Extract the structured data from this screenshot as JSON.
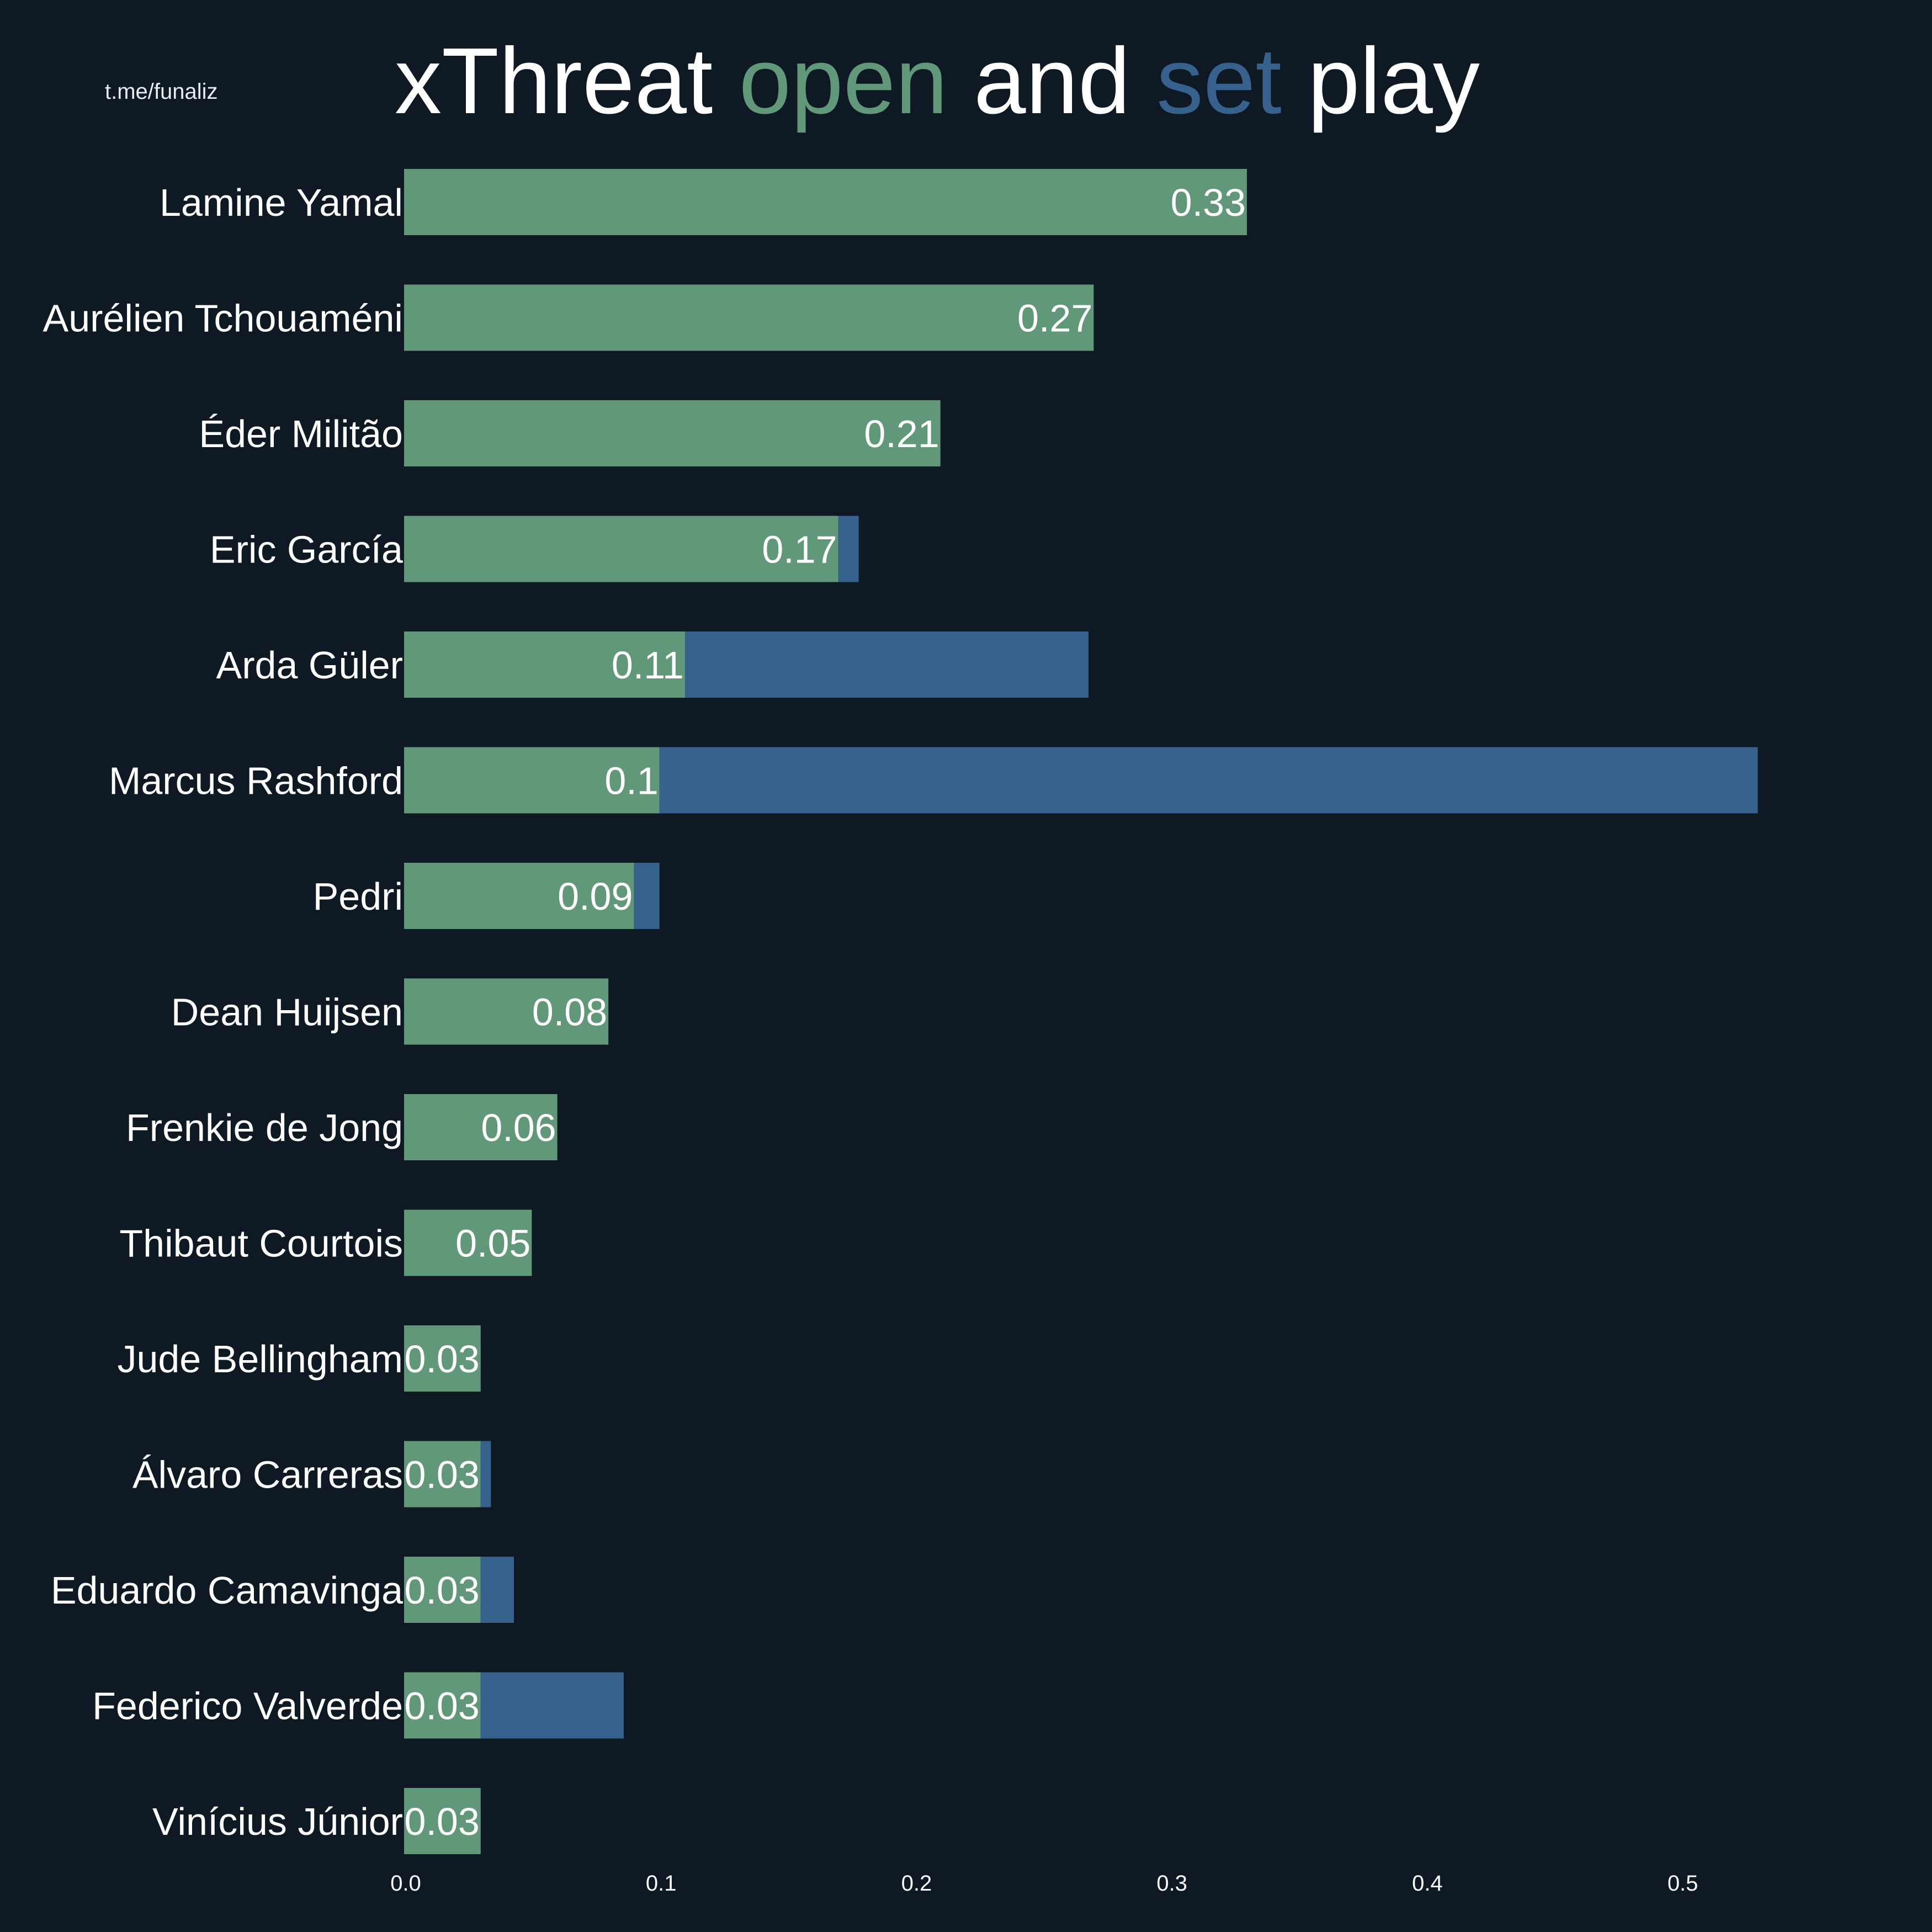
{
  "watermark": "t.me/funaliz",
  "title": {
    "part1": "xThreat ",
    "open_word": "open",
    "part2": " and ",
    "set_word": "set",
    "part3": " play"
  },
  "colors": {
    "background": "#0f1923",
    "open_play": "#62987a",
    "set_play": "#36618d",
    "text": "#ffffff"
  },
  "chart_data": {
    "type": "bar",
    "orientation": "horizontal",
    "stacked": true,
    "title": "xThreat open and set play",
    "categories": [
      "Lamine Yamal",
      "Aurélien Tchouaméni",
      "Éder Militão",
      "Eric García",
      "Arda Güler",
      "Marcus Rashford",
      "Pedri",
      "Dean Huijsen",
      "Frenkie de Jong",
      "Thibaut Courtois",
      "Jude Bellingham",
      "Álvaro Carreras",
      "Eduardo Camavinga",
      "Federico Valverde",
      "Vinícius Júnior"
    ],
    "series": [
      {
        "name": "open",
        "color": "#62987a",
        "values": [
          0.33,
          0.27,
          0.21,
          0.17,
          0.11,
          0.1,
          0.09,
          0.08,
          0.06,
          0.05,
          0.03,
          0.03,
          0.03,
          0.03,
          0.03
        ]
      },
      {
        "name": "set",
        "color": "#36618d",
        "values": [
          0,
          0,
          0,
          0.008,
          0.158,
          0.43,
          0.01,
          0,
          0,
          0,
          0,
          0.004,
          0.013,
          0.056,
          0
        ]
      }
    ],
    "data_labels": [
      "0.33",
      "0.27",
      "0.21",
      "0.17",
      "0.11",
      "0.1",
      "0.09",
      "0.08",
      "0.06",
      "0.05",
      "0.03",
      "0.03",
      "0.03",
      "0.03",
      "0.03"
    ],
    "xticks": [
      "0.0",
      "0.1",
      "0.2",
      "0.3",
      "0.4",
      "0.5"
    ],
    "xtick_values": [
      0,
      0.1,
      0.2,
      0.3,
      0.4,
      0.5
    ],
    "xlim": [
      -0.035,
      0.55
    ],
    "xlabel": "",
    "ylabel": "",
    "grid": false,
    "legend": "title-colored-words"
  }
}
